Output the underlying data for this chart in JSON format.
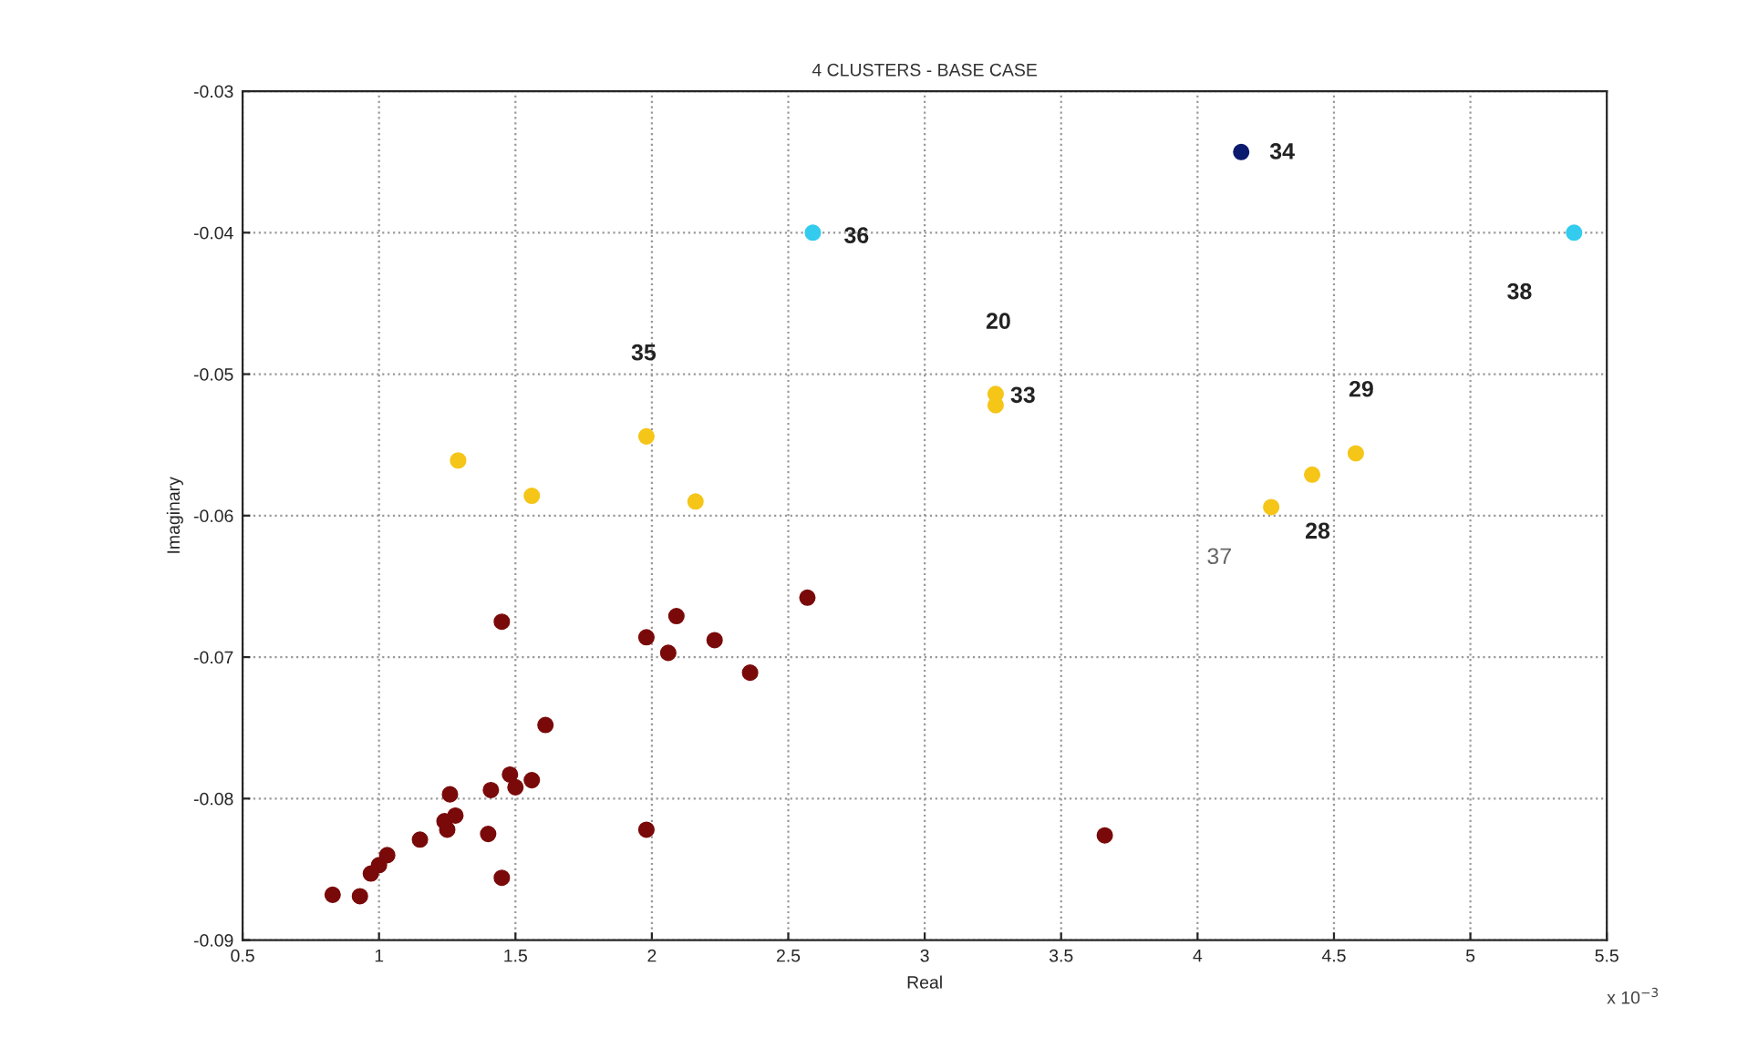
{
  "chart_data": {
    "type": "scatter",
    "title": "4 CLUSTERS - BASE CASE",
    "xlabel": "Real",
    "ylabel": "Imaginary",
    "series": [
      {
        "color": "#7a0a0a",
        "x": [
          0.83,
          0.93,
          0.97,
          1.0,
          1.03,
          1.15,
          1.24,
          1.25,
          1.28,
          1.26,
          1.4,
          1.41,
          1.45,
          1.45,
          1.48,
          1.5,
          1.56,
          1.61,
          1.98,
          2.09,
          2.06,
          2.23,
          2.36,
          2.57,
          1.98,
          3.66
        ],
        "values": [
          -0.0868,
          -0.0869,
          -0.0853,
          -0.0847,
          -0.084,
          -0.0829,
          -0.0816,
          -0.0822,
          -0.0812,
          -0.0797,
          -0.0825,
          -0.0794,
          -0.0856,
          -0.0675,
          -0.0783,
          -0.0792,
          -0.0787,
          -0.0748,
          -0.0686,
          -0.0671,
          -0.0697,
          -0.0688,
          -0.0711,
          -0.0658,
          -0.0822,
          -0.0826
        ]
      },
      {
        "color": "#f5c518",
        "x": [
          1.29,
          1.56,
          1.98,
          2.16,
          3.26,
          3.26,
          4.27,
          4.42,
          4.58
        ],
        "values": [
          -0.0561,
          -0.0586,
          -0.0544,
          -0.059,
          -0.0514,
          -0.0522,
          -0.0594,
          -0.0571,
          -0.0556
        ]
      },
      {
        "color": "#33ccee",
        "x": [
          2.59,
          5.38
        ],
        "values": [
          -0.04,
          -0.04
        ]
      },
      {
        "color": "#0a1a6e",
        "x": [
          4.16
        ],
        "values": [
          -0.0343
        ]
      }
    ],
    "annotations": [
      "34",
      "36",
      "20",
      "35",
      "33",
      "29",
      "38",
      "28",
      "37",
      "x 10$^{−3}$"
    ],
    "xlim": [
      0.5,
      5.5
    ],
    "xticks": [
      0.5,
      1,
      1.5,
      2,
      2.5,
      3,
      3.5,
      4,
      4.5,
      5,
      5.5
    ],
    "ylim": [
      -0.09,
      -0.03
    ],
    "yticks": [
      -0.09,
      -0.08,
      -0.07,
      -0.06,
      -0.05,
      -0.04,
      -0.03
    ],
    "grid": true,
    "legend": false,
    "marker": "circle"
  }
}
